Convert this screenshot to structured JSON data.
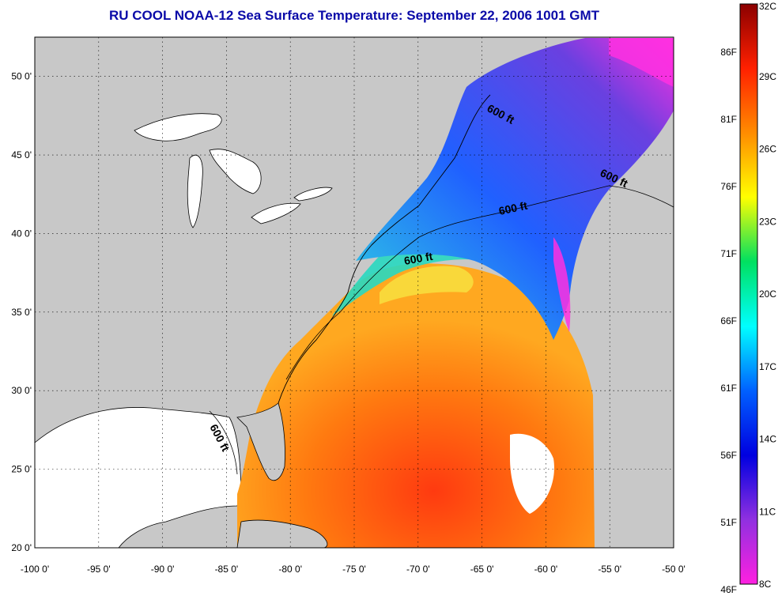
{
  "title": "RU COOL  NOAA-12  Sea Surface Temperature:  September 22, 2006 1001 GMT",
  "axes": {
    "lon_labels": [
      "-100 0'",
      "-95 0'",
      "-90 0'",
      "-85 0'",
      "-80 0'",
      "-75 0'",
      "-70 0'",
      "-65 0'",
      "-60 0'",
      "-55 0'",
      "-50 0'"
    ],
    "lon_values": [
      -100,
      -95,
      -90,
      -85,
      -80,
      -75,
      -70,
      -65,
      -60,
      -55,
      -50
    ],
    "lat_labels": [
      "20 0'",
      "25 0'",
      "30 0'",
      "35 0'",
      "40 0'",
      "45 0'",
      "50 0'"
    ],
    "lat_values": [
      20,
      25,
      30,
      35,
      40,
      45,
      50
    ],
    "lon_range": [
      -100,
      -50
    ],
    "lat_range": [
      20,
      52.5
    ],
    "grid": true
  },
  "contour_labels": [
    "600 ft",
    "600 ft",
    "600 ft",
    "600 ft",
    "600 ft"
  ],
  "colorbar": {
    "fahrenheit_labels": [
      "86F",
      "81F",
      "76F",
      "71F",
      "66F",
      "61F",
      "56F",
      "51F",
      "46F"
    ],
    "celsius_labels": [
      "32C",
      "29C",
      "26C",
      "23C",
      "20C",
      "17C",
      "14C",
      "11C",
      "8C"
    ],
    "celsius_values": [
      32,
      29,
      26,
      23,
      20,
      17,
      14,
      11,
      8
    ],
    "range_c": [
      8,
      32
    ],
    "colors": [
      "#8b0000",
      "#ff2000",
      "#ff8c00",
      "#ffff00",
      "#00e060",
      "#00ffff",
      "#0060ff",
      "#0000e0",
      "#9030e0",
      "#ff20e0"
    ]
  },
  "land_color": "#c8c8c8",
  "no_data_color": "#ffffff"
}
